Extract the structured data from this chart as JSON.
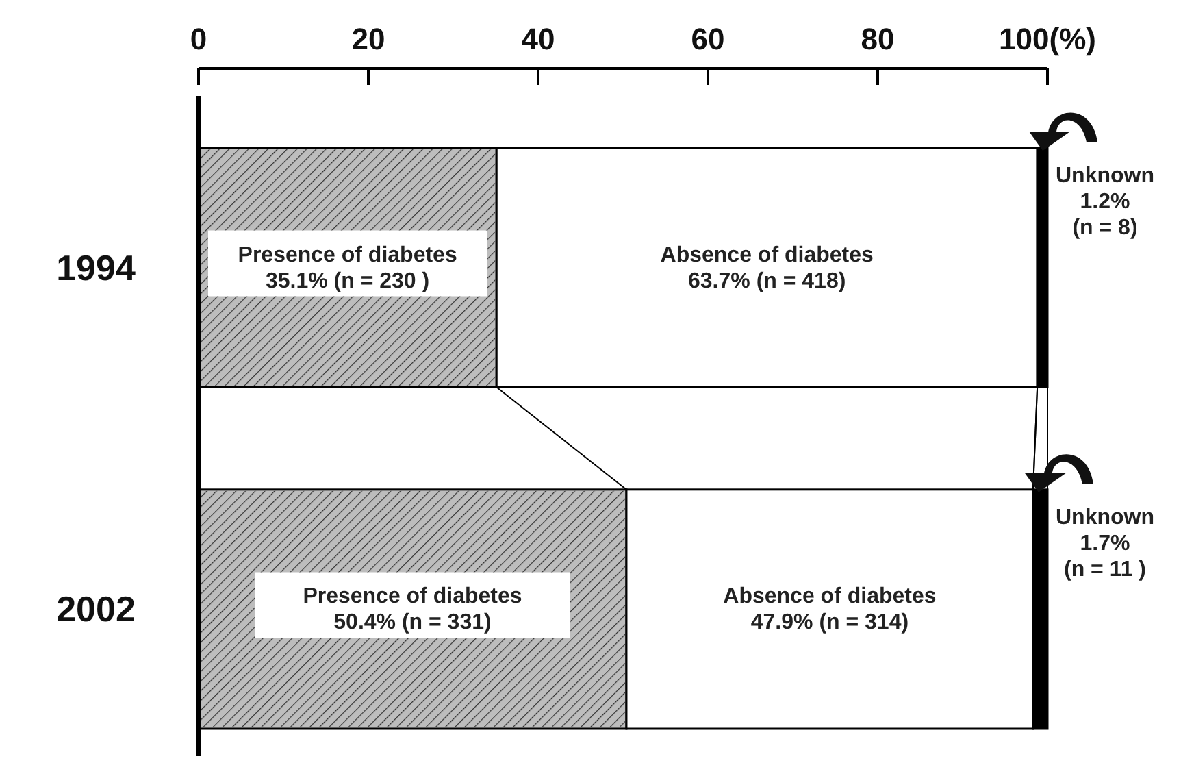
{
  "chart_data": {
    "type": "bar",
    "orientation": "horizontal",
    "stacked": true,
    "categories": [
      "1994",
      "2002"
    ],
    "xlim": [
      0,
      100
    ],
    "xticks": [
      0,
      20,
      40,
      60,
      80,
      {
        "value": 100,
        "label": "100(%)"
      }
    ],
    "series": [
      {
        "name": "Presence of diabetes",
        "color": "#bdbdbd",
        "values": [
          35.1,
          50.4
        ],
        "value_labels": [
          "35.1% (n = 230 )",
          "50.4% (n = 331)"
        ]
      },
      {
        "name": "Absence of diabetes",
        "color": "#ffffff",
        "values": [
          63.7,
          47.9
        ],
        "value_labels": [
          "63.7% (n = 418)",
          "47.9% (n = 314)"
        ]
      },
      {
        "name": "Unknown",
        "color": "#000000",
        "values": [
          1.2,
          1.7
        ],
        "value_labels": [
          "1.2%\n(n = 8)",
          "1.7%\n(n = 11 )"
        ]
      }
    ],
    "legend": false,
    "grid": false
  }
}
